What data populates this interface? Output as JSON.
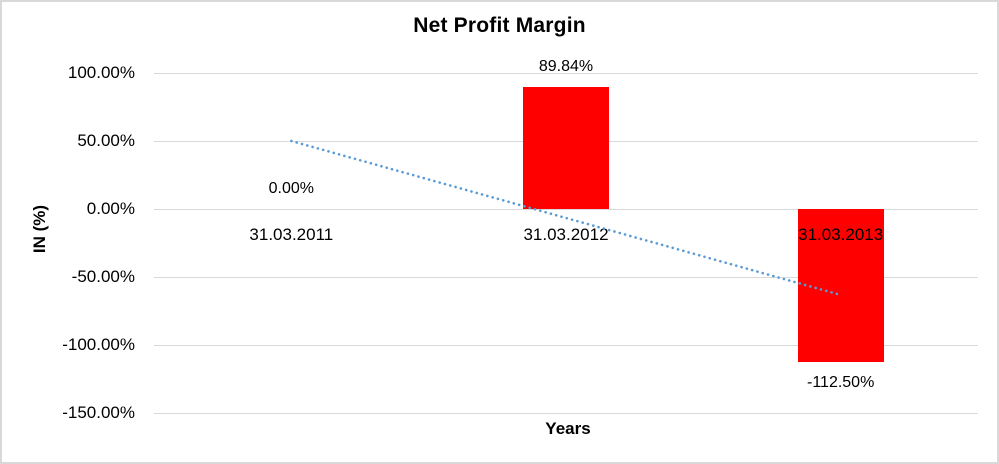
{
  "chart_data": {
    "type": "bar",
    "title": "Net Profit Margin",
    "xlabel": "Years",
    "ylabel": "IN (%)",
    "categories": [
      "31.03.2011",
      "31.03.2012",
      "31.03.2013"
    ],
    "values": [
      0.0,
      89.84,
      -112.5
    ],
    "data_labels": [
      "0.00%",
      "89.84%",
      "-112.50%"
    ],
    "yticks": [
      {
        "value": 100,
        "label": "100.00%"
      },
      {
        "value": 50,
        "label": "50.00%"
      },
      {
        "value": 0,
        "label": "0.00%"
      },
      {
        "value": -50,
        "label": "-50.00%"
      },
      {
        "value": -100,
        "label": "-100.00%"
      },
      {
        "value": -150,
        "label": "-150.00%"
      }
    ],
    "ylim": [
      -150,
      100
    ],
    "grid": true,
    "legend": "none",
    "bar_color": "#FF0000",
    "grid_color": "#D9D9D9",
    "text_color": "#000000",
    "trendline": {
      "type": "linear",
      "style": "dotted",
      "color": "#5B9BD5",
      "start_value": 50.0,
      "end_value": -63.2
    }
  }
}
